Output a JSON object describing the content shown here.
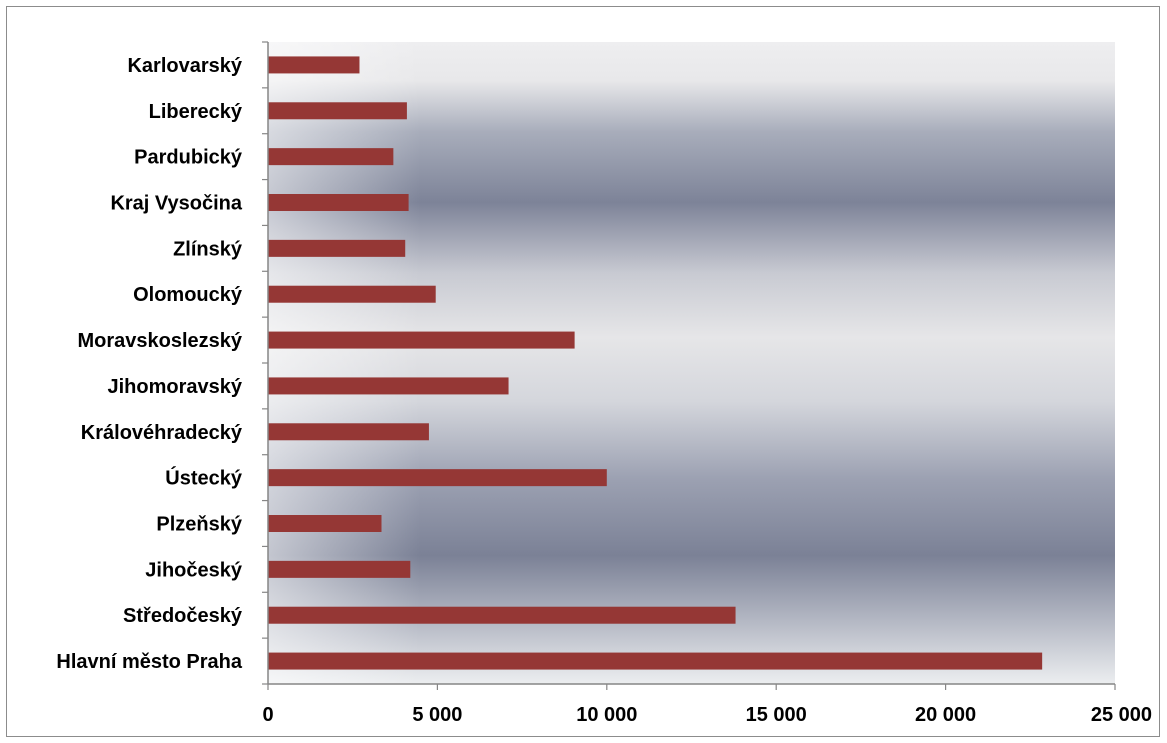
{
  "chart_data": {
    "type": "bar",
    "orientation": "horizontal",
    "title": "",
    "xlabel": "",
    "ylabel": "",
    "categories": [
      "Hlavní město Praha",
      "Středočeský",
      "Jihočeský",
      "Plzeňský",
      "Ústecký",
      "Královéhradecký",
      "Jihomoravský",
      "Moravskoslezský",
      "Olomoucký",
      "Zlínský",
      "Kraj Vysočina",
      "Pardubický",
      "Liberecký",
      "Karlovarský"
    ],
    "values": [
      22850,
      13800,
      4200,
      3350,
      10000,
      4750,
      7100,
      9050,
      4950,
      4050,
      4150,
      3700,
      4100,
      2700
    ],
    "xlim": [
      0,
      25000
    ],
    "xticks": [
      0,
      5000,
      10000,
      15000,
      20000,
      25000
    ],
    "xtick_labels": [
      "0",
      "5 000",
      "10 000",
      "15 000",
      "20 000",
      "25 000"
    ],
    "grid": false,
    "legend": "none",
    "bar_color": "#953735",
    "plot_background": "gradient gray bands"
  }
}
